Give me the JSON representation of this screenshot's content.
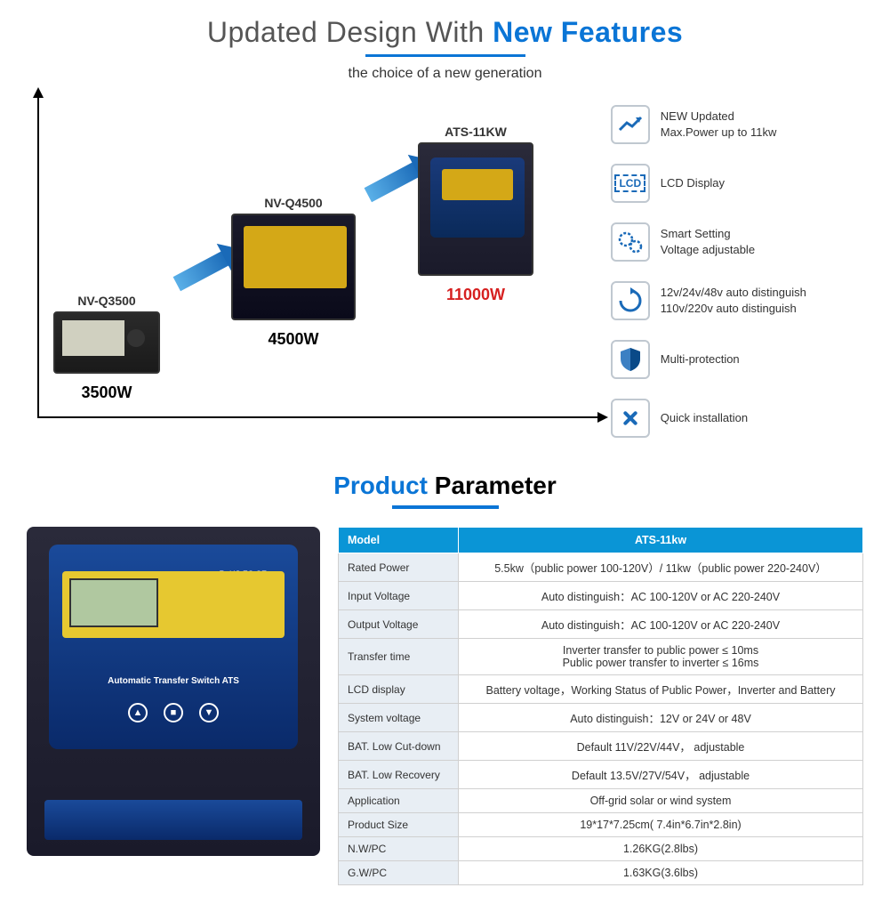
{
  "header": {
    "title_prefix": "Updated Design With ",
    "title_highlight": "New Features",
    "subtitle": "the choice of a new generation",
    "underline_color": "#0a75d6"
  },
  "chart": {
    "devices": [
      {
        "label": "NV-Q3500",
        "watt": "3500W",
        "watt_color": "#000000"
      },
      {
        "label": "NV-Q4500",
        "watt": "4500W",
        "watt_color": "#000000"
      },
      {
        "label": "ATS-11KW",
        "watt": "11000W",
        "watt_color": "#d62020"
      }
    ],
    "axis_color": "#000000",
    "arrow_gradient": [
      "#5ab0e8",
      "#1a6ab8"
    ]
  },
  "features": [
    {
      "icon": "trend",
      "line1": "NEW Updated",
      "line2": "Max.Power up to 11kw"
    },
    {
      "icon": "lcd",
      "line1": "LCD Display",
      "line2": ""
    },
    {
      "icon": "gear",
      "line1": "Smart Setting",
      "line2": "Voltage  adjustable"
    },
    {
      "icon": "cycle",
      "line1": "12v/24v/48v auto distinguish",
      "line2": "110v/220v auto distinguish"
    },
    {
      "icon": "shield",
      "line1": "Multi-protection",
      "line2": ""
    },
    {
      "icon": "tools",
      "line1": "Quick installation",
      "line2": ""
    }
  ],
  "section2": {
    "title_blue": "Product",
    "title_black": "Parameter"
  },
  "product": {
    "cert": "RoHS  FC  CE",
    "label": "Automatic Transfer Switch  ATS",
    "body_color": "#1a1a2a",
    "panel_color": "#0a2a6a",
    "accent_color": "#e6c830"
  },
  "param_table": {
    "header": [
      "Model",
      "ATS-11kw"
    ],
    "header_bg": "#0a95d6",
    "label_bg": "#e8eef4",
    "rows": [
      [
        "Rated Power",
        "5.5kw（public power 100-120V）/ 11kw（public power 220-240V）"
      ],
      [
        "Input Voltage",
        "Auto distinguish：AC 100-120V or AC 220-240V"
      ],
      [
        "Output Voltage",
        "Auto distinguish：AC 100-120V or AC 220-240V"
      ],
      [
        "Transfer time",
        "Inverter transfer to public power ≤ 10ms\nPublic power transfer to inverter ≤ 16ms"
      ],
      [
        "LCD display",
        "Battery voltage，Working Status of Public Power，Inverter and Battery"
      ],
      [
        "System voltage",
        "Auto distinguish：12V or 24V or 48V"
      ],
      [
        "BAT. Low Cut-down",
        "Default 11V/22V/44V，  adjustable"
      ],
      [
        "BAT. Low Recovery",
        "Default 13.5V/27V/54V，  adjustable"
      ],
      [
        "Application",
        "Off-grid solar or wind system"
      ],
      [
        "Product Size",
        "19*17*7.25cm( 7.4in*6.7in*2.8in)"
      ],
      [
        "N.W/PC",
        "1.26KG(2.8lbs)"
      ],
      [
        "G.W/PC",
        "1.63KG(3.6lbs)"
      ]
    ]
  }
}
